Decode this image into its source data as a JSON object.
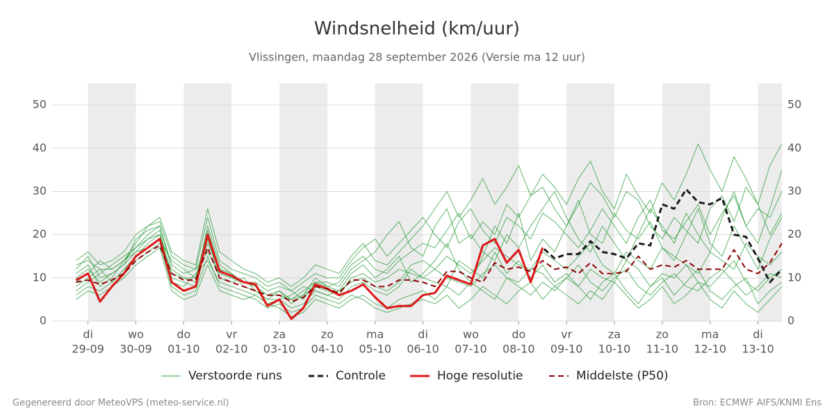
{
  "chart_data": {
    "type": "line",
    "title": "Windsnelheid (km/uur)",
    "subtitle": "Vlissingen, maandag 28 september 2026 (Versie ma 12 uur)",
    "footer_left": "Gegenereerd door MeteoVPS (meteo-service.nl)",
    "footer_right": "Bron: ECMWF AIFS/KNMI Ens",
    "xlim": [
      -2,
      59
    ],
    "xticks": [
      {
        "value": 1,
        "label": "di",
        "sublabel": "29-09"
      },
      {
        "value": 5,
        "label": "wo",
        "sublabel": "30-09"
      },
      {
        "value": 9,
        "label": "do",
        "sublabel": "01-10"
      },
      {
        "value": 13,
        "label": "vr",
        "sublabel": "02-10"
      },
      {
        "value": 17,
        "label": "za",
        "sublabel": "03-10"
      },
      {
        "value": 21,
        "label": "zo",
        "sublabel": "04-10"
      },
      {
        "value": 25,
        "label": "ma",
        "sublabel": "05-10"
      },
      {
        "value": 29,
        "label": "di",
        "sublabel": "06-10"
      },
      {
        "value": 33,
        "label": "wo",
        "sublabel": "07-10"
      },
      {
        "value": 37,
        "label": "do",
        "sublabel": "08-10"
      },
      {
        "value": 41,
        "label": "vr",
        "sublabel": "09-10"
      },
      {
        "value": 45,
        "label": "za",
        "sublabel": "10-10"
      },
      {
        "value": 49,
        "label": "zo",
        "sublabel": "11-10"
      },
      {
        "value": 53,
        "label": "ma",
        "sublabel": "12-10"
      },
      {
        "value": 57,
        "label": "di",
        "sublabel": "13-10"
      }
    ],
    "ylim": [
      0,
      55
    ],
    "yticks": [
      0,
      10,
      20,
      30,
      40,
      50
    ],
    "grid": true,
    "day_shading": true,
    "ensemble": {
      "name": "Verstoorde runs",
      "color": "#2e9e3e",
      "runs": [
        [
          11,
          13,
          8,
          10,
          14,
          17,
          20,
          22,
          12,
          10,
          9,
          22,
          13,
          11,
          9,
          8,
          6,
          7,
          5,
          6,
          10,
          8,
          7,
          11,
          13,
          10,
          12,
          15,
          9,
          11,
          14,
          18,
          12,
          9,
          15,
          22,
          18,
          25,
          14,
          19,
          16,
          22,
          28,
          20,
          18,
          25,
          21,
          19,
          23,
          17,
          14,
          20,
          26,
          18,
          15,
          22,
          17,
          12,
          19,
          24
        ],
        [
          8,
          10,
          12,
          9,
          12,
          15,
          18,
          20,
          9,
          8,
          11,
          14,
          9,
          8,
          7,
          6,
          4,
          5,
          6,
          8,
          7,
          6,
          5,
          8,
          9,
          7,
          6,
          8,
          12,
          10,
          9,
          8,
          14,
          12,
          10,
          16,
          11,
          14,
          10,
          13,
          9,
          11,
          8,
          12,
          10,
          9,
          14,
          12,
          8,
          11,
          10,
          13,
          9,
          8,
          11,
          14,
          9,
          7,
          10,
          12
        ],
        [
          12,
          15,
          10,
          11,
          13,
          16,
          17,
          19,
          14,
          12,
          10,
          18,
          12,
          10,
          9,
          9,
          7,
          8,
          7,
          5,
          9,
          9,
          8,
          12,
          14,
          16,
          20,
          23,
          17,
          15,
          22,
          26,
          18,
          20,
          16,
          14,
          20,
          17,
          22,
          26,
          30,
          24,
          19,
          16,
          22,
          18,
          14,
          20,
          26,
          22,
          18,
          25,
          20,
          16,
          24,
          30,
          22,
          18,
          26,
          35
        ],
        [
          6,
          8,
          7,
          9,
          12,
          14,
          16,
          18,
          8,
          6,
          7,
          15,
          8,
          7,
          6,
          5,
          3,
          4,
          2,
          3,
          6,
          5,
          4,
          6,
          5,
          3,
          2,
          3,
          4,
          5,
          4,
          6,
          3,
          5,
          8,
          6,
          4,
          7,
          9,
          5,
          8,
          6,
          4,
          7,
          5,
          9,
          6,
          3,
          5,
          8,
          4,
          6,
          9,
          5,
          3,
          7,
          4,
          2,
          5,
          8
        ],
        [
          10,
          12,
          9,
          11,
          13,
          19,
          21,
          22,
          13,
          11,
          12,
          16,
          11,
          10,
          9,
          8,
          6,
          6,
          5,
          7,
          9,
          8,
          9,
          13,
          15,
          12,
          11,
          14,
          16,
          18,
          17,
          21,
          25,
          19,
          23,
          20,
          27,
          24,
          29,
          31,
          26,
          22,
          27,
          32,
          29,
          24,
          30,
          28,
          22,
          19,
          24,
          21,
          18,
          26,
          29,
          23,
          31,
          27,
          20,
          25
        ],
        [
          9,
          11,
          14,
          12,
          14,
          16,
          19,
          21,
          10,
          9,
          8,
          19,
          10,
          9,
          10,
          7,
          5,
          7,
          4,
          6,
          8,
          7,
          6,
          10,
          11,
          9,
          10,
          12,
          11,
          10,
          12,
          15,
          13,
          11,
          14,
          17,
          15,
          13,
          12,
          16,
          14,
          12,
          15,
          18,
          13,
          11,
          16,
          14,
          12,
          17,
          15,
          13,
          11,
          16,
          14,
          12,
          18,
          15,
          13,
          16
        ],
        [
          7,
          9,
          11,
          13,
          15,
          17,
          19,
          20,
          11,
          10,
          10,
          21,
          12,
          11,
          8,
          7,
          5,
          5,
          3,
          4,
          7,
          6,
          7,
          9,
          10,
          8,
          7,
          9,
          13,
          14,
          12,
          10,
          9,
          8,
          11,
          13,
          10,
          9,
          12,
          11,
          8,
          10,
          13,
          9,
          7,
          10,
          12,
          8,
          6,
          9,
          11,
          8,
          7,
          10,
          12,
          9,
          6,
          8,
          11,
          10
        ],
        [
          13,
          14,
          12,
          12,
          14,
          18,
          22,
          23,
          15,
          13,
          12,
          24,
          14,
          12,
          11,
          10,
          8,
          9,
          7,
          9,
          11,
          10,
          10,
          14,
          17,
          19,
          15,
          18,
          21,
          24,
          20,
          17,
          23,
          26,
          21,
          18,
          24,
          22,
          19,
          25,
          23,
          20,
          17,
          21,
          26,
          22,
          18,
          24,
          28,
          21,
          19,
          23,
          27,
          20,
          25,
          29,
          22,
          26,
          24,
          30
        ],
        [
          5,
          7,
          6,
          8,
          10,
          13,
          15,
          17,
          7,
          5,
          6,
          13,
          7,
          6,
          5,
          6,
          4,
          3,
          1,
          2,
          5,
          4,
          3,
          5,
          6,
          4,
          3,
          5,
          6,
          7,
          5,
          8,
          6,
          9,
          7,
          5,
          10,
          8,
          6,
          9,
          7,
          10,
          8,
          5,
          9,
          11,
          7,
          4,
          8,
          10,
          6,
          9,
          12,
          7,
          5,
          8,
          10,
          4,
          7,
          9
        ],
        [
          14,
          16,
          13,
          14,
          16,
          20,
          22,
          24,
          16,
          14,
          13,
          26,
          16,
          14,
          12,
          11,
          9,
          10,
          8,
          10,
          13,
          12,
          11,
          15,
          18,
          14,
          13,
          16,
          19,
          22,
          26,
          30,
          24,
          28,
          33,
          27,
          31,
          36,
          29,
          34,
          31,
          27,
          33,
          37,
          30,
          26,
          34,
          29,
          25,
          32,
          28,
          34,
          41,
          35,
          30,
          38,
          33,
          27,
          36,
          41
        ]
      ]
    },
    "series": [
      {
        "name": "Controle",
        "color": "#1a1a1a",
        "dashed": true,
        "width": 3,
        "values": [
          9.5,
          11,
          4.5,
          8,
          11,
          15,
          17,
          19,
          9,
          7,
          8,
          20,
          11.5,
          10.5,
          9,
          8.5,
          3.5,
          5,
          0.5,
          3,
          8.5,
          7.5,
          6,
          7,
          8.5,
          5.5,
          3,
          3.5,
          3.5,
          6,
          6.5,
          10.5,
          9.5,
          8.5,
          17.5,
          19,
          13.5,
          16.5,
          9,
          17,
          14.5,
          15.5,
          15.5,
          18.5,
          16,
          15.5,
          14.5,
          18,
          17.5,
          27,
          26,
          30.5,
          27.5,
          27,
          28.5,
          20,
          19.5,
          14.5,
          9,
          12
        ]
      },
      {
        "name": "Hoge resolutie",
        "color": "#e01a1a",
        "dashed": false,
        "width": 3,
        "values": [
          9.5,
          11,
          4.5,
          8,
          11,
          15,
          17,
          19,
          9,
          7,
          8,
          20,
          11.5,
          10.5,
          9,
          8.5,
          3.5,
          5,
          0.5,
          3,
          8.5,
          7.5,
          6,
          7,
          8.5,
          5.5,
          3,
          3.5,
          3.5,
          6,
          6.5,
          10.5,
          9.5,
          8.5,
          17.5,
          19,
          13.5,
          16.5,
          9,
          17,
          null,
          null,
          null,
          null,
          null,
          null,
          null,
          null,
          null,
          null,
          null,
          null,
          null,
          null,
          null,
          null,
          null,
          null,
          null,
          null
        ]
      },
      {
        "name": "Middelste (P50)",
        "color": "#8b0000",
        "dashed": true,
        "width": 2,
        "values": [
          9,
          9.5,
          8.5,
          9.5,
          11,
          14,
          16,
          17.5,
          11,
          9.5,
          9.5,
          17,
          10,
          9,
          8,
          7,
          6,
          6,
          4.5,
          5.5,
          8,
          7.5,
          6.5,
          9.5,
          9.5,
          8,
          8,
          9.5,
          9.5,
          9,
          8,
          11.5,
          11.5,
          10,
          9,
          13.5,
          12,
          12.5,
          11.5,
          14,
          12,
          12.5,
          11,
          13.5,
          11,
          11,
          11.5,
          15,
          12,
          13,
          12.5,
          14,
          12,
          12,
          12,
          16.5,
          12,
          11,
          13.5,
          18
        ]
      }
    ]
  }
}
